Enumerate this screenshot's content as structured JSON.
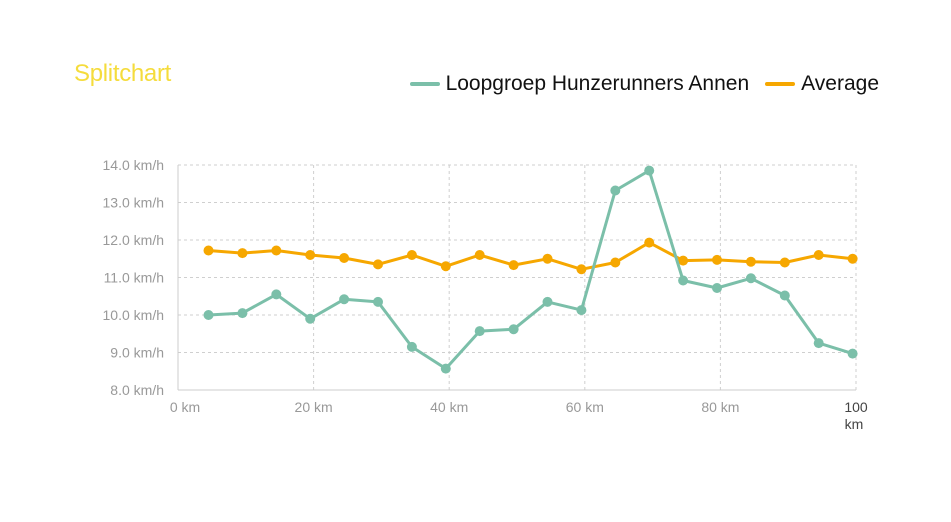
{
  "chart_data": {
    "type": "line",
    "title": "Splitchart",
    "xlabel": "",
    "ylabel": "",
    "x": [
      4.5,
      9.5,
      14.5,
      19.5,
      24.5,
      29.5,
      34.5,
      39.5,
      44.5,
      49.5,
      54.5,
      59.5,
      64.5,
      69.5,
      74.5,
      79.5,
      84.5,
      89.5,
      94.5,
      99.5
    ],
    "series": [
      {
        "name": "Loopgroep Hunzerunners Annen",
        "color": "#7bbfa9",
        "values": [
          10.0,
          10.05,
          10.55,
          9.9,
          10.42,
          10.35,
          9.15,
          8.57,
          9.57,
          9.62,
          10.35,
          10.13,
          13.32,
          13.85,
          10.92,
          10.72,
          10.98,
          10.52,
          9.25,
          8.97
        ]
      },
      {
        "name": "Average",
        "color": "#f6a700",
        "values": [
          11.72,
          11.65,
          11.72,
          11.6,
          11.52,
          11.35,
          11.6,
          11.3,
          11.6,
          11.33,
          11.5,
          11.22,
          11.4,
          11.93,
          11.45,
          11.47,
          11.42,
          11.4,
          11.6,
          11.5
        ]
      }
    ],
    "xlim": [
      0,
      100
    ],
    "ylim": [
      8.0,
      14.0
    ],
    "x_ticks": [
      0,
      20,
      40,
      60,
      80,
      100
    ],
    "x_tick_labels": [
      "0 km",
      "20 km",
      "40 km",
      "60 km",
      "80 km",
      "100 km"
    ],
    "y_ticks": [
      8,
      9,
      10,
      11,
      12,
      13,
      14
    ],
    "y_tick_labels": [
      "8.0 km/h",
      "9.0 km/h",
      "10.0 km/h",
      "11.0 km/h",
      "12.0 km/h",
      "13.0 km/h",
      "14.0 km/h"
    ],
    "grid": true,
    "legend_position": "top-right"
  }
}
